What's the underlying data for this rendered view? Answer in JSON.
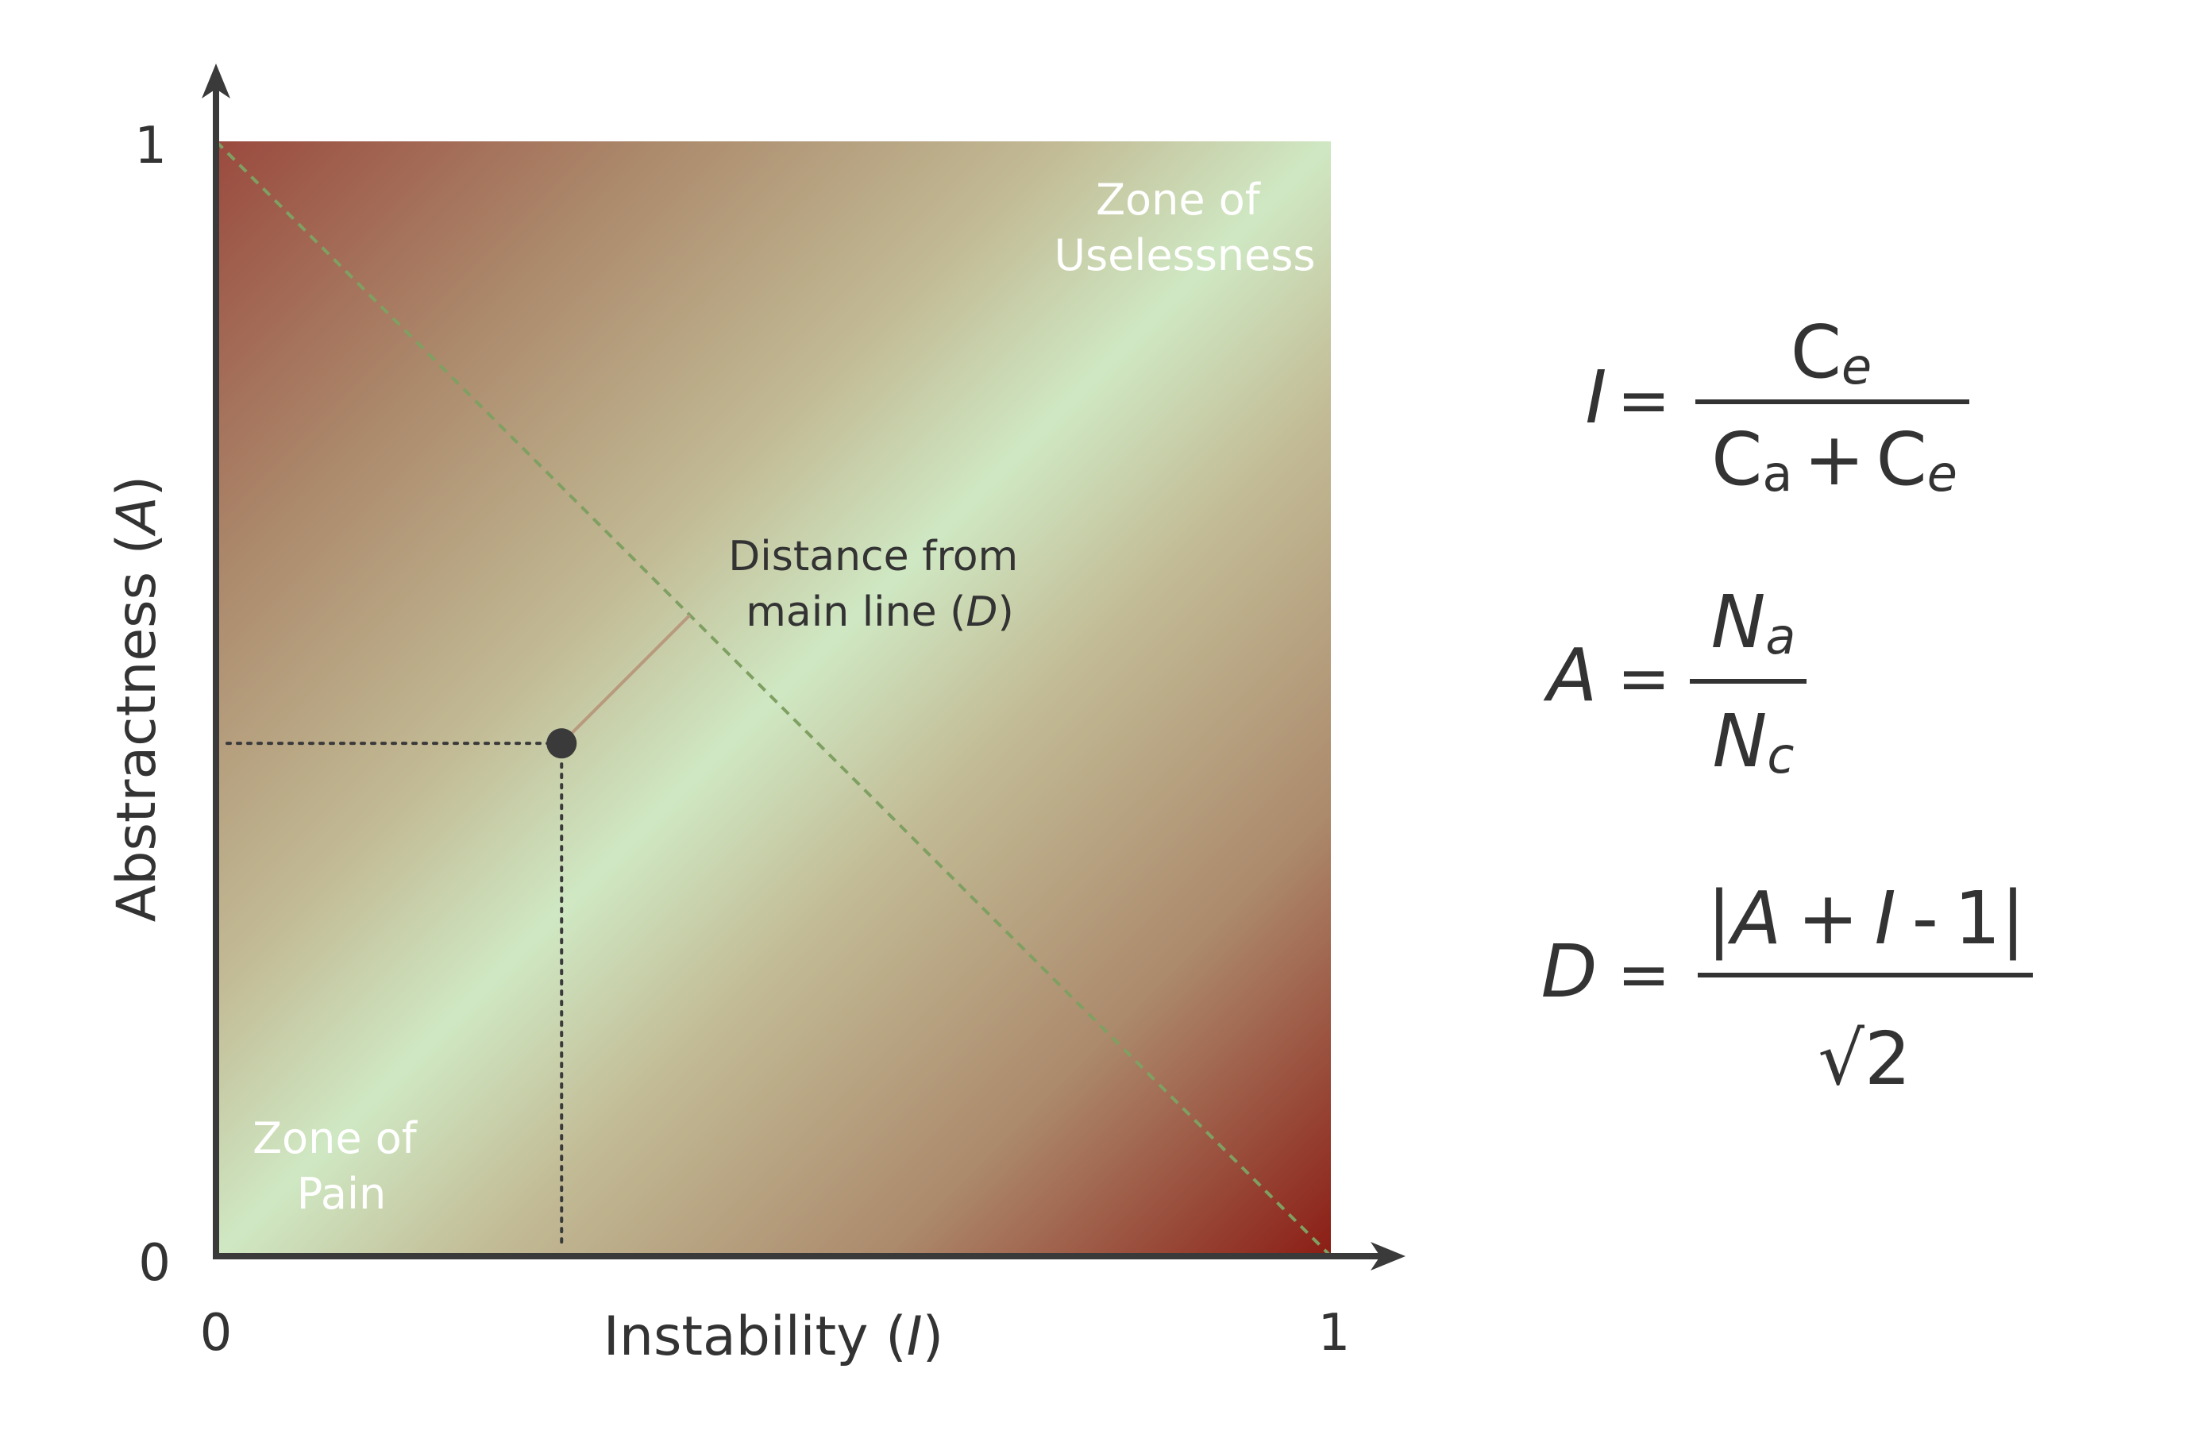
{
  "axes": {
    "x_label_prefix": "Instability (",
    "x_label_var": "I",
    "x_label_suffix": ")",
    "y_label_prefix": "Abstractness (",
    "y_label_var": "A",
    "y_label_suffix": ")",
    "x_tick_min": "0",
    "x_tick_max": "1",
    "y_tick_min": "0",
    "y_tick_max": "1"
  },
  "zones": {
    "uselessness_line1": "Zone of",
    "uselessness_line2": "Uselessness",
    "pain_line1": "Zone of",
    "pain_line2": "Pain"
  },
  "distance_label": {
    "line1": "Distance from",
    "line2_prefix": "main line (",
    "line2_var": "D",
    "line2_suffix": ")"
  },
  "sample_point": {
    "instability": 0.31,
    "abstractness": 0.46
  },
  "formulas": {
    "instability": {
      "lhs": "I",
      "eq": "=",
      "num_base": "C",
      "num_sub": "e",
      "den_base1": "C",
      "den_sub1": "a",
      "den_plus": "+",
      "den_base2": "C",
      "den_sub2": "e"
    },
    "abstractness": {
      "lhs": "A",
      "eq": "=",
      "num_base": "N",
      "num_sub": "a",
      "den_base": "N",
      "den_sub": "c"
    },
    "distance": {
      "lhs": "D",
      "eq": "=",
      "num_bar_l": "|",
      "num_a": "A",
      "num_plus": "+",
      "num_i": "I",
      "num_minus": "-",
      "num_one": "1",
      "num_bar_r": "|",
      "den_sqrt": "√",
      "den_two": "2"
    }
  },
  "colors": {
    "main_line": "#cfe8c3",
    "mid": "#c2bb95",
    "warm": "#ac8a6c",
    "edge": "#9a4a3e",
    "corner": "#8b1d15",
    "axis": "#3a3a3a",
    "diagonal": "#7fa062",
    "distance_line": "#b89a7e",
    "text": "#333333",
    "zone_text": "#ffffff"
  }
}
